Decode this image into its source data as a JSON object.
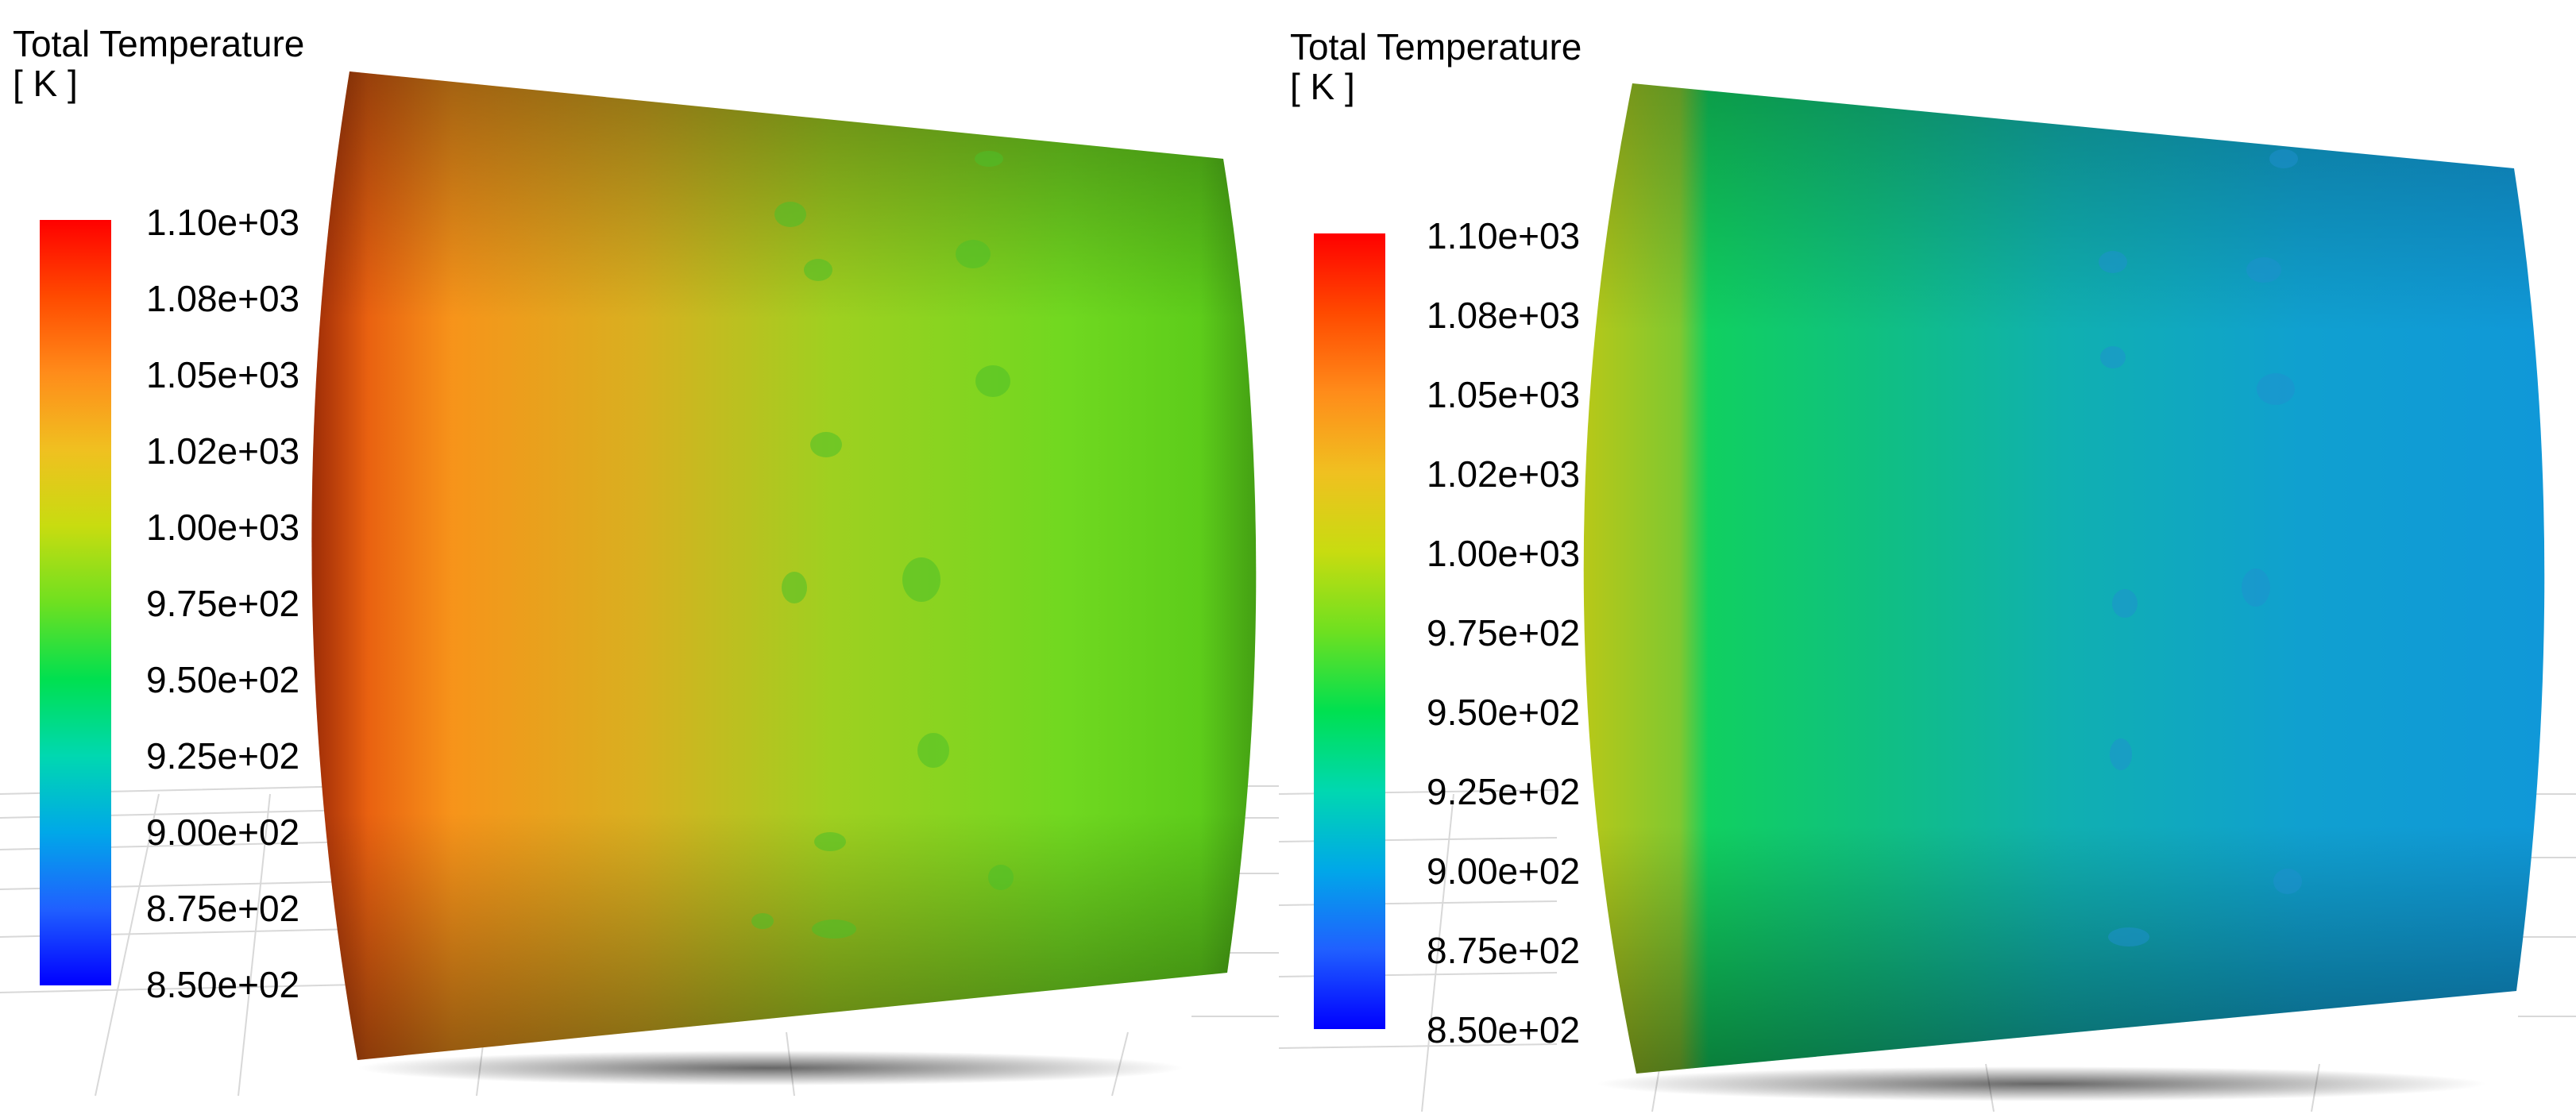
{
  "panels": [
    {
      "title": "Total Temperature",
      "units": "[ K ]",
      "legend_ticks": [
        "1.10e+03",
        "1.08e+03",
        "1.05e+03",
        "1.02e+03",
        "1.00e+03",
        "9.75e+02",
        "9.50e+02",
        "9.25e+02",
        "9.00e+02",
        "8.75e+02",
        "8.50e+02"
      ],
      "field": "warm"
    },
    {
      "title": "Total Temperature",
      "units": "[ K ]",
      "legend_ticks": [
        "1.10e+03",
        "1.08e+03",
        "1.05e+03",
        "1.02e+03",
        "1.00e+03",
        "9.75e+02",
        "9.50e+02",
        "9.25e+02",
        "9.00e+02",
        "8.75e+02",
        "8.50e+02"
      ],
      "field": "cool"
    }
  ],
  "colormap": [
    "#ff0000",
    "#ff4a00",
    "#ff8c1a",
    "#f0c020",
    "#c8dc10",
    "#6fe020",
    "#00e050",
    "#00d8b0",
    "#00a8e8",
    "#2060ff",
    "#0000ff"
  ]
}
